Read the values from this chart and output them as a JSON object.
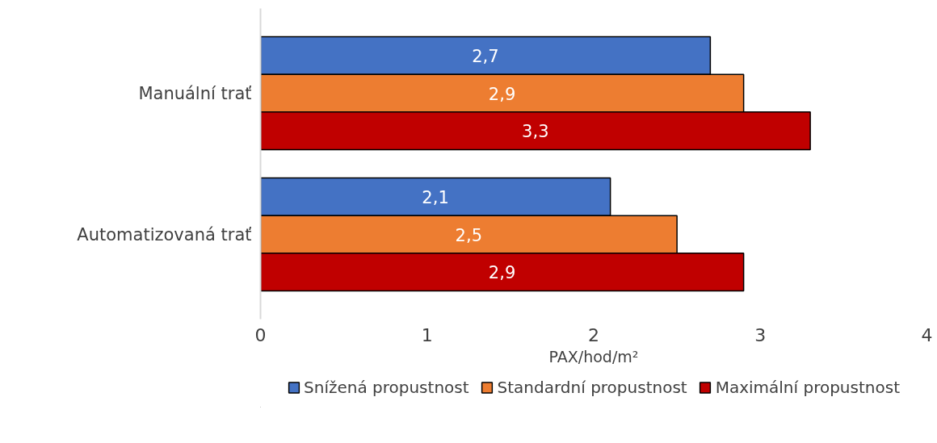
{
  "chart_data": {
    "type": "bar",
    "orientation": "horizontal",
    "categories": [
      "Manuální trať",
      "Automatizovaná trať"
    ],
    "xlabel": "PAX/hod/m²",
    "xlim": [
      0,
      4
    ],
    "xticks": [
      0,
      1,
      2,
      3,
      4
    ],
    "grid": false,
    "legend": "bottom",
    "series": [
      {
        "name": "Snížená propustnost",
        "color": "#4472c4",
        "values": [
          2.7,
          2.1
        ],
        "value_labels": [
          "2,7",
          "2,1"
        ]
      },
      {
        "name": "Standardní propustnost",
        "color": "#ed7d31",
        "values": [
          2.9,
          2.5
        ],
        "value_labels": [
          "2,9",
          "2,5"
        ]
      },
      {
        "name": "Maximální propustnost",
        "color": "#c00000",
        "values": [
          3.3,
          2.9
        ],
        "value_labels": [
          "3,3",
          "2,9"
        ]
      }
    ]
  }
}
